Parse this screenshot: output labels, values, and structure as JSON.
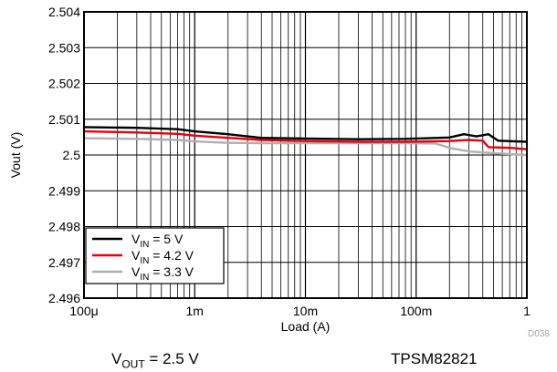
{
  "chart_data": {
    "type": "line",
    "xlabel": "Load (A)",
    "ylabel": "Vout (V)",
    "x_scale": "log",
    "xlim": [
      0.0001,
      1
    ],
    "ylim": [
      2.496,
      2.504
    ],
    "x_ticks": [
      {
        "value": 0.0001,
        "label": "100μ"
      },
      {
        "value": 0.001,
        "label": "1m"
      },
      {
        "value": 0.01,
        "label": "10m"
      },
      {
        "value": 0.1,
        "label": "100m"
      },
      {
        "value": 1,
        "label": "1"
      }
    ],
    "y_ticks": [
      {
        "value": 2.496,
        "label": "2.496"
      },
      {
        "value": 2.497,
        "label": "2.497"
      },
      {
        "value": 2.498,
        "label": "2.498"
      },
      {
        "value": 2.499,
        "label": "2.499"
      },
      {
        "value": 2.5,
        "label": "2.5"
      },
      {
        "value": 2.501,
        "label": "2.501"
      },
      {
        "value": 2.502,
        "label": "2.502"
      },
      {
        "value": 2.503,
        "label": "2.503"
      },
      {
        "value": 2.504,
        "label": "2.504"
      }
    ],
    "grid": true,
    "legend_position": "bottom-left",
    "series": [
      {
        "name": "V_IN = 5 V",
        "legend": {
          "main": "V",
          "sub": "IN",
          "rest": " = 5 V"
        },
        "color": "#000000",
        "points": [
          [
            0.0001,
            2.50078
          ],
          [
            0.0003,
            2.50076
          ],
          [
            0.0007,
            2.50072
          ],
          [
            0.001,
            2.50066
          ],
          [
            0.002,
            2.50058
          ],
          [
            0.004,
            2.50048
          ],
          [
            0.01,
            2.50046
          ],
          [
            0.03,
            2.50044
          ],
          [
            0.08,
            2.50045
          ],
          [
            0.2,
            2.50049
          ],
          [
            0.27,
            2.50058
          ],
          [
            0.35,
            2.50052
          ],
          [
            0.45,
            2.50058
          ],
          [
            0.55,
            2.5004
          ],
          [
            1,
            2.50037
          ]
        ]
      },
      {
        "name": "V_IN = 4.2 V",
        "legend": {
          "main": "V",
          "sub": "IN",
          "rest": " = 4.2 V"
        },
        "color": "#e8000b",
        "points": [
          [
            0.0001,
            2.50066
          ],
          [
            0.0003,
            2.50063
          ],
          [
            0.0007,
            2.50059
          ],
          [
            0.001,
            2.50054
          ],
          [
            0.002,
            2.50048
          ],
          [
            0.004,
            2.50042
          ],
          [
            0.01,
            2.50039
          ],
          [
            0.03,
            2.50037
          ],
          [
            0.08,
            2.50037
          ],
          [
            0.2,
            2.50039
          ],
          [
            0.3,
            2.50042
          ],
          [
            0.4,
            2.5004
          ],
          [
            0.45,
            2.50022
          ],
          [
            0.7,
            2.5002
          ],
          [
            1,
            2.50016
          ]
        ]
      },
      {
        "name": "V_IN = 3.3 V",
        "legend": {
          "main": "V",
          "sub": "IN",
          "rest": " = 3.3 V"
        },
        "color": "#b0b0b0",
        "points": [
          [
            0.0001,
            2.50047
          ],
          [
            0.0003,
            2.50045
          ],
          [
            0.0007,
            2.50042
          ],
          [
            0.001,
            2.50038
          ],
          [
            0.002,
            2.50034
          ],
          [
            0.004,
            2.50033
          ],
          [
            0.01,
            2.50033
          ],
          [
            0.03,
            2.50033
          ],
          [
            0.08,
            2.50033
          ],
          [
            0.15,
            2.50032
          ],
          [
            0.2,
            2.5002
          ],
          [
            0.3,
            2.5001
          ],
          [
            0.5,
            2.50005
          ],
          [
            1,
            2.5
          ]
        ]
      }
    ]
  },
  "footer": {
    "left": {
      "main": "V",
      "sub": "OUT",
      "rest": " = 2.5 V"
    },
    "right": "TPSM82821",
    "ref": "D038"
  }
}
